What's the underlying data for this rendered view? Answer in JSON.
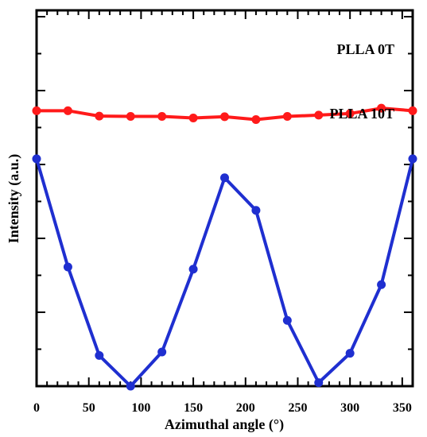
{
  "chart_data": {
    "type": "line",
    "xlabel": "Azimuthal angle (°)",
    "ylabel": "Intensity (a.u.)",
    "xlim": [
      0,
      360
    ],
    "ylim": [
      0,
      1
    ],
    "xticks": [
      0,
      50,
      100,
      150,
      200,
      250,
      300,
      350
    ],
    "xtick_labels": [
      "0",
      "50",
      "100",
      "150",
      "200",
      "250",
      "300",
      "350"
    ],
    "y_tick_labels_shown": false,
    "grid": false,
    "x": [
      0,
      30,
      60,
      90,
      120,
      150,
      180,
      210,
      240,
      270,
      300,
      330,
      360
    ],
    "series": [
      {
        "name": "PLLA 0T",
        "color": "#ff1a1a",
        "values": [
          0.871,
          0.871,
          0.854,
          0.853,
          0.853,
          0.848,
          0.852,
          0.843,
          0.853,
          0.857,
          0.862,
          0.879,
          0.871
        ]
      },
      {
        "name": "PLLA 10T",
        "color": "#1f2fd0",
        "values": [
          0.719,
          0.377,
          0.097,
          0.0,
          0.108,
          0.37,
          0.659,
          0.556,
          0.208,
          0.011,
          0.104,
          0.321,
          0.719
        ]
      }
    ]
  }
}
